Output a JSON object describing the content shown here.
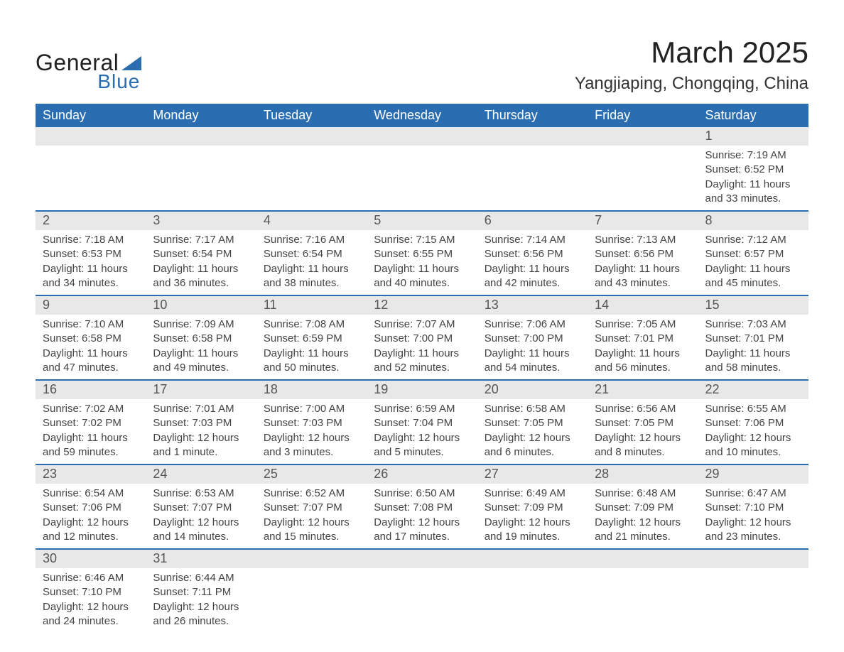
{
  "brand": {
    "name1": "General",
    "name2": "Blue",
    "triangle_color": "#2a6db0"
  },
  "title": {
    "month": "March 2025",
    "location": "Yangjiaping, Chongqing, China"
  },
  "colors": {
    "header_bg": "#2a6db0",
    "band_bg": "#e8e8e8",
    "row_border": "#2a6db0",
    "text": "#444444",
    "title_text": "#222222",
    "page_bg": "#ffffff"
  },
  "typography": {
    "month_fontsize": 42,
    "location_fontsize": 24,
    "header_fontsize": 18,
    "daynum_fontsize": 18,
    "body_fontsize": 15
  },
  "calendar": {
    "type": "table",
    "day_headers": [
      "Sunday",
      "Monday",
      "Tuesday",
      "Wednesday",
      "Thursday",
      "Friday",
      "Saturday"
    ],
    "weeks": [
      [
        null,
        null,
        null,
        null,
        null,
        null,
        {
          "n": "1",
          "sunrise": "Sunrise: 7:19 AM",
          "sunset": "Sunset: 6:52 PM",
          "daylight": "Daylight: 11 hours and 33 minutes."
        }
      ],
      [
        {
          "n": "2",
          "sunrise": "Sunrise: 7:18 AM",
          "sunset": "Sunset: 6:53 PM",
          "daylight": "Daylight: 11 hours and 34 minutes."
        },
        {
          "n": "3",
          "sunrise": "Sunrise: 7:17 AM",
          "sunset": "Sunset: 6:54 PM",
          "daylight": "Daylight: 11 hours and 36 minutes."
        },
        {
          "n": "4",
          "sunrise": "Sunrise: 7:16 AM",
          "sunset": "Sunset: 6:54 PM",
          "daylight": "Daylight: 11 hours and 38 minutes."
        },
        {
          "n": "5",
          "sunrise": "Sunrise: 7:15 AM",
          "sunset": "Sunset: 6:55 PM",
          "daylight": "Daylight: 11 hours and 40 minutes."
        },
        {
          "n": "6",
          "sunrise": "Sunrise: 7:14 AM",
          "sunset": "Sunset: 6:56 PM",
          "daylight": "Daylight: 11 hours and 42 minutes."
        },
        {
          "n": "7",
          "sunrise": "Sunrise: 7:13 AM",
          "sunset": "Sunset: 6:56 PM",
          "daylight": "Daylight: 11 hours and 43 minutes."
        },
        {
          "n": "8",
          "sunrise": "Sunrise: 7:12 AM",
          "sunset": "Sunset: 6:57 PM",
          "daylight": "Daylight: 11 hours and 45 minutes."
        }
      ],
      [
        {
          "n": "9",
          "sunrise": "Sunrise: 7:10 AM",
          "sunset": "Sunset: 6:58 PM",
          "daylight": "Daylight: 11 hours and 47 minutes."
        },
        {
          "n": "10",
          "sunrise": "Sunrise: 7:09 AM",
          "sunset": "Sunset: 6:58 PM",
          "daylight": "Daylight: 11 hours and 49 minutes."
        },
        {
          "n": "11",
          "sunrise": "Sunrise: 7:08 AM",
          "sunset": "Sunset: 6:59 PM",
          "daylight": "Daylight: 11 hours and 50 minutes."
        },
        {
          "n": "12",
          "sunrise": "Sunrise: 7:07 AM",
          "sunset": "Sunset: 7:00 PM",
          "daylight": "Daylight: 11 hours and 52 minutes."
        },
        {
          "n": "13",
          "sunrise": "Sunrise: 7:06 AM",
          "sunset": "Sunset: 7:00 PM",
          "daylight": "Daylight: 11 hours and 54 minutes."
        },
        {
          "n": "14",
          "sunrise": "Sunrise: 7:05 AM",
          "sunset": "Sunset: 7:01 PM",
          "daylight": "Daylight: 11 hours and 56 minutes."
        },
        {
          "n": "15",
          "sunrise": "Sunrise: 7:03 AM",
          "sunset": "Sunset: 7:01 PM",
          "daylight": "Daylight: 11 hours and 58 minutes."
        }
      ],
      [
        {
          "n": "16",
          "sunrise": "Sunrise: 7:02 AM",
          "sunset": "Sunset: 7:02 PM",
          "daylight": "Daylight: 11 hours and 59 minutes."
        },
        {
          "n": "17",
          "sunrise": "Sunrise: 7:01 AM",
          "sunset": "Sunset: 7:03 PM",
          "daylight": "Daylight: 12 hours and 1 minute."
        },
        {
          "n": "18",
          "sunrise": "Sunrise: 7:00 AM",
          "sunset": "Sunset: 7:03 PM",
          "daylight": "Daylight: 12 hours and 3 minutes."
        },
        {
          "n": "19",
          "sunrise": "Sunrise: 6:59 AM",
          "sunset": "Sunset: 7:04 PM",
          "daylight": "Daylight: 12 hours and 5 minutes."
        },
        {
          "n": "20",
          "sunrise": "Sunrise: 6:58 AM",
          "sunset": "Sunset: 7:05 PM",
          "daylight": "Daylight: 12 hours and 6 minutes."
        },
        {
          "n": "21",
          "sunrise": "Sunrise: 6:56 AM",
          "sunset": "Sunset: 7:05 PM",
          "daylight": "Daylight: 12 hours and 8 minutes."
        },
        {
          "n": "22",
          "sunrise": "Sunrise: 6:55 AM",
          "sunset": "Sunset: 7:06 PM",
          "daylight": "Daylight: 12 hours and 10 minutes."
        }
      ],
      [
        {
          "n": "23",
          "sunrise": "Sunrise: 6:54 AM",
          "sunset": "Sunset: 7:06 PM",
          "daylight": "Daylight: 12 hours and 12 minutes."
        },
        {
          "n": "24",
          "sunrise": "Sunrise: 6:53 AM",
          "sunset": "Sunset: 7:07 PM",
          "daylight": "Daylight: 12 hours and 14 minutes."
        },
        {
          "n": "25",
          "sunrise": "Sunrise: 6:52 AM",
          "sunset": "Sunset: 7:07 PM",
          "daylight": "Daylight: 12 hours and 15 minutes."
        },
        {
          "n": "26",
          "sunrise": "Sunrise: 6:50 AM",
          "sunset": "Sunset: 7:08 PM",
          "daylight": "Daylight: 12 hours and 17 minutes."
        },
        {
          "n": "27",
          "sunrise": "Sunrise: 6:49 AM",
          "sunset": "Sunset: 7:09 PM",
          "daylight": "Daylight: 12 hours and 19 minutes."
        },
        {
          "n": "28",
          "sunrise": "Sunrise: 6:48 AM",
          "sunset": "Sunset: 7:09 PM",
          "daylight": "Daylight: 12 hours and 21 minutes."
        },
        {
          "n": "29",
          "sunrise": "Sunrise: 6:47 AM",
          "sunset": "Sunset: 7:10 PM",
          "daylight": "Daylight: 12 hours and 23 minutes."
        }
      ],
      [
        {
          "n": "30",
          "sunrise": "Sunrise: 6:46 AM",
          "sunset": "Sunset: 7:10 PM",
          "daylight": "Daylight: 12 hours and 24 minutes."
        },
        {
          "n": "31",
          "sunrise": "Sunrise: 6:44 AM",
          "sunset": "Sunset: 7:11 PM",
          "daylight": "Daylight: 12 hours and 26 minutes."
        },
        null,
        null,
        null,
        null,
        null
      ]
    ]
  }
}
